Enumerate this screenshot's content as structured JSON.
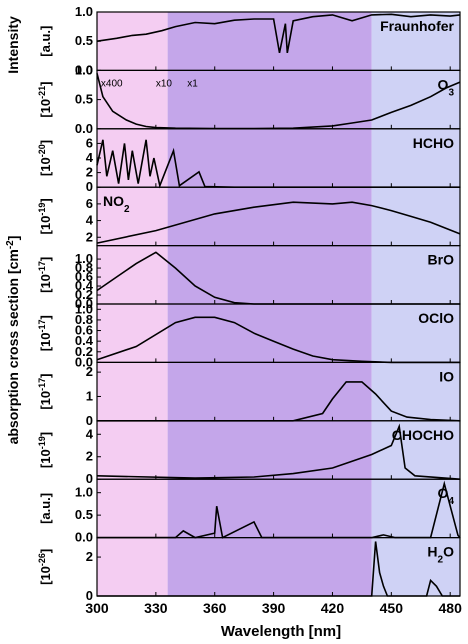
{
  "chart_data": {
    "type": "line",
    "x_label": "Wavelength [nm]",
    "y_label_outer": "absorption cross section [cm",
    "y_label_outer_sup": "-2",
    "y_label_outer_close": "]",
    "intensity_label": "Intensity",
    "xlim": [
      300,
      485
    ],
    "x_ticks": [
      300,
      330,
      360,
      390,
      420,
      450,
      480
    ],
    "bands": [
      {
        "from": 300,
        "to": 336,
        "color": "#f4cdf2"
      },
      {
        "from": 336,
        "to": 440,
        "color": "#c4a6ea"
      },
      {
        "from": 440,
        "to": 485,
        "color": "#cfd2f5"
      }
    ],
    "panels": [
      {
        "name": "Fraunhofer",
        "unit_prefix": "",
        "unit": "[a.u.]",
        "label": "Fraunhofer",
        "label_sub": "",
        "ylim": [
          0,
          1
        ],
        "y_ticks": [
          "0.0",
          "0.5",
          "1.0"
        ],
        "points": [
          [
            300,
            0.5
          ],
          [
            310,
            0.55
          ],
          [
            318,
            0.6
          ],
          [
            325,
            0.62
          ],
          [
            333,
            0.68
          ],
          [
            340,
            0.75
          ],
          [
            350,
            0.82
          ],
          [
            360,
            0.8
          ],
          [
            370,
            0.86
          ],
          [
            380,
            0.88
          ],
          [
            390,
            0.88
          ],
          [
            393,
            0.3
          ],
          [
            396,
            0.8
          ],
          [
            397,
            0.3
          ],
          [
            400,
            0.85
          ],
          [
            410,
            0.92
          ],
          [
            420,
            0.95
          ],
          [
            430,
            0.85
          ],
          [
            440,
            0.95
          ],
          [
            450,
            0.96
          ],
          [
            460,
            0.92
          ],
          [
            470,
            0.95
          ],
          [
            480,
            0.93
          ],
          [
            485,
            0.95
          ]
        ]
      },
      {
        "name": "O3",
        "unit_prefix": "[10",
        "unit_exp": "-21",
        "unit_suffix": "]",
        "label": "O",
        "label_sub": "3",
        "ylim": [
          0,
          1
        ],
        "y_ticks": [
          "0.0",
          "0.5",
          "1.0"
        ],
        "annotations": [
          "x400",
          "x10",
          "x1"
        ],
        "points": [
          [
            300,
            0.95
          ],
          [
            303,
            0.55
          ],
          [
            308,
            0.3
          ],
          [
            315,
            0.15
          ],
          [
            320,
            0.08
          ],
          [
            325,
            0.04
          ],
          [
            330,
            0.02
          ],
          [
            340,
            0.01
          ],
          [
            360,
            0.005
          ],
          [
            380,
            0.005
          ],
          [
            400,
            0.01
          ],
          [
            420,
            0.05
          ],
          [
            430,
            0.1
          ],
          [
            440,
            0.15
          ],
          [
            450,
            0.28
          ],
          [
            460,
            0.4
          ],
          [
            470,
            0.55
          ],
          [
            478,
            0.7
          ],
          [
            485,
            0.8
          ]
        ]
      },
      {
        "name": "HCHO",
        "unit_prefix": "[10",
        "unit_exp": "-20",
        "unit_suffix": "]",
        "label": "HCHO",
        "label_sub": "",
        "ylim": [
          0,
          8
        ],
        "y_ticks": [
          "0",
          "2",
          "4",
          "6"
        ],
        "points": [
          [
            300,
            3
          ],
          [
            303,
            6.5
          ],
          [
            305,
            1.5
          ],
          [
            308,
            5
          ],
          [
            311,
            0.5
          ],
          [
            314,
            6
          ],
          [
            316,
            1
          ],
          [
            318,
            5
          ],
          [
            321,
            0.5
          ],
          [
            325,
            6.5
          ],
          [
            327,
            1.5
          ],
          [
            329,
            4
          ],
          [
            332,
            0.2
          ],
          [
            339,
            5
          ],
          [
            342,
            0.2
          ],
          [
            352,
            2.1
          ],
          [
            355,
            0.1
          ],
          [
            370,
            0
          ],
          [
            485,
            0
          ]
        ]
      },
      {
        "name": "NO2",
        "unit_prefix": "[10",
        "unit_exp": "-19",
        "unit_suffix": "]",
        "label": "NO",
        "label_sub": "2",
        "ylim": [
          1,
          8
        ],
        "y_ticks": [
          "2",
          "4",
          "6"
        ],
        "points": [
          [
            300,
            1.3
          ],
          [
            330,
            2.8
          ],
          [
            360,
            4.8
          ],
          [
            380,
            5.6
          ],
          [
            400,
            6.2
          ],
          [
            420,
            6.0
          ],
          [
            430,
            6.2
          ],
          [
            440,
            5.8
          ],
          [
            450,
            5.2
          ],
          [
            460,
            4.5
          ],
          [
            470,
            3.8
          ],
          [
            485,
            2.4
          ]
        ]
      },
      {
        "name": "BrO",
        "unit_prefix": "[10",
        "unit_exp": "-17",
        "unit_suffix": "]",
        "label": "BrO",
        "label_sub": "",
        "ylim": [
          0,
          1.3
        ],
        "y_ticks": [
          "0.0",
          "0.2",
          "0.4",
          "0.6",
          "0.8",
          "1.0"
        ],
        "points": [
          [
            300,
            0.3
          ],
          [
            310,
            0.6
          ],
          [
            320,
            0.9
          ],
          [
            330,
            1.15
          ],
          [
            340,
            0.8
          ],
          [
            350,
            0.4
          ],
          [
            360,
            0.15
          ],
          [
            370,
            0.03
          ],
          [
            380,
            0
          ],
          [
            485,
            0
          ]
        ]
      },
      {
        "name": "OClO",
        "unit_prefix": "[10",
        "unit_exp": "-17",
        "unit_suffix": "]",
        "label": "OClO",
        "label_sub": "",
        "ylim": [
          0,
          1.1
        ],
        "y_ticks": [
          "0.0",
          "0.2",
          "0.4",
          "0.6",
          "0.8",
          "1.0"
        ],
        "points": [
          [
            300,
            0.05
          ],
          [
            320,
            0.3
          ],
          [
            340,
            0.75
          ],
          [
            350,
            0.85
          ],
          [
            360,
            0.85
          ],
          [
            370,
            0.75
          ],
          [
            380,
            0.55
          ],
          [
            390,
            0.4
          ],
          [
            400,
            0.25
          ],
          [
            410,
            0.12
          ],
          [
            420,
            0.05
          ],
          [
            435,
            0.02
          ],
          [
            450,
            0
          ],
          [
            485,
            0
          ]
        ]
      },
      {
        "name": "IO",
        "unit_prefix": "[10",
        "unit_exp": "-17",
        "unit_suffix": "]",
        "label": "IO",
        "label_sub": "",
        "ylim": [
          0,
          2.4
        ],
        "y_ticks": [
          "0",
          "1",
          "2"
        ],
        "points": [
          [
            300,
            0
          ],
          [
            400,
            0
          ],
          [
            415,
            0.3
          ],
          [
            420,
            0.9
          ],
          [
            427,
            1.6
          ],
          [
            435,
            1.6
          ],
          [
            442,
            1.1
          ],
          [
            450,
            0.4
          ],
          [
            458,
            0.15
          ],
          [
            470,
            0.05
          ],
          [
            485,
            0
          ]
        ]
      },
      {
        "name": "CHOCHO",
        "unit_prefix": "[10",
        "unit_exp": "-19",
        "unit_suffix": "]",
        "label": "CHOCHO",
        "label_sub": "",
        "ylim": [
          0,
          5.2
        ],
        "y_ticks": [
          "0",
          "2",
          "4"
        ],
        "points": [
          [
            300,
            0.3
          ],
          [
            350,
            0.1
          ],
          [
            380,
            0.2
          ],
          [
            400,
            0.5
          ],
          [
            420,
            1.0
          ],
          [
            430,
            1.6
          ],
          [
            440,
            2.2
          ],
          [
            450,
            3.0
          ],
          [
            454,
            4.7
          ],
          [
            457,
            1.0
          ],
          [
            462,
            0.3
          ],
          [
            485,
            0
          ]
        ]
      },
      {
        "name": "O4",
        "unit_prefix": "",
        "unit": "[a.u.]",
        "label": "O",
        "label_sub": "4",
        "ylim": [
          0,
          1.3
        ],
        "y_ticks": [
          "0.0",
          "0.5",
          "1.0"
        ],
        "points": [
          [
            300,
            0
          ],
          [
            340,
            0
          ],
          [
            344,
            0.15
          ],
          [
            350,
            0
          ],
          [
            360,
            0.1
          ],
          [
            361,
            0.7
          ],
          [
            364,
            0
          ],
          [
            380,
            0.35
          ],
          [
            384,
            0
          ],
          [
            440,
            0
          ],
          [
            446,
            0.06
          ],
          [
            452,
            0
          ],
          [
            470,
            0
          ],
          [
            477,
            1.2
          ],
          [
            484,
            0.05
          ],
          [
            485,
            0
          ]
        ]
      },
      {
        "name": "H2O",
        "unit_prefix": "[10",
        "unit_exp": "-26",
        "unit_suffix": "]",
        "label": "H",
        "label_sub": "2",
        "label_tail": "O",
        "ylim": [
          0,
          3
        ],
        "y_ticks": [
          "0",
          "2"
        ],
        "points": [
          [
            300,
            0
          ],
          [
            440,
            0
          ],
          [
            442,
            2.8
          ],
          [
            444,
            1.2
          ],
          [
            446,
            0.5
          ],
          [
            448,
            0
          ],
          [
            468,
            0
          ],
          [
            470,
            0.8
          ],
          [
            473,
            0.5
          ],
          [
            476,
            0
          ],
          [
            485,
            0
          ]
        ]
      }
    ]
  }
}
